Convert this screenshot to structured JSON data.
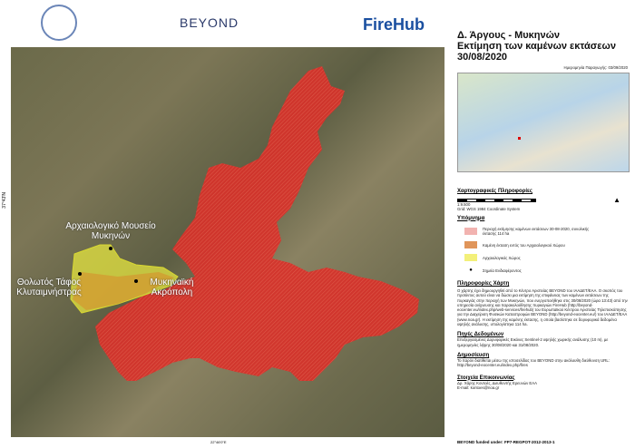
{
  "header": {
    "logo_university": "seal",
    "logo_beyond": "BEYOND",
    "logo_firehub": "FireHub"
  },
  "colors": {
    "burned": "#d8312a",
    "archaeological": "#e6e640",
    "burned_in_site": "#d88a2a",
    "firehub": "#1a4fa0"
  },
  "map": {
    "labels": {
      "museum": "Αρχαιολογικό Μουσείο Μυκηνών",
      "tomb": "Θολωτός Τάφος Κλυταιμνήστρας",
      "acropolis": "Μυκηναϊκή Ακρόπολη"
    },
    "lat_label": "37°43'N",
    "lon_label": "22°46'0\"E"
  },
  "panel": {
    "title": [
      "Δ. Άργους - Μυκηνών",
      "Εκτίμηση των καμένων εκτάσεων",
      "30/08/2020"
    ],
    "production_date": "Ημερομηνία Παραγωγής: 03/09/2020",
    "cartographic": {
      "heading": "Χαρτογραφικές Πληροφορίες",
      "scale": "1:9.500",
      "grid": "Grid:  WGS 1984 Coordinate System"
    },
    "legend": {
      "heading": "Υπόμνημα",
      "items": [
        "Περιοχή εκτίμησης καμένων εκτάσεων 30-08-2020, συνολικής έκτασης 114 ha",
        "Καμένη έκταση εντός του Αρχαιολογικού Χώρου",
        "Αρχαιολογικός Χώρος",
        "Σημεία Ενδιαφέροντος"
      ]
    },
    "map_info": {
      "heading": "Πληροφορίες Χάρτη",
      "text": "Ο χάρτης έχει δημιουργηθεί από το Κέντρο Αριστείας BEYOND του ΙΑΑΔΕΤ/ΕΑΑ. Ο σκοπός του προϊόντος αυτού είναι να δώσει μια εκτίμηση της επιφάνειας των καμένων εκτάσεων της πυρκαγιάς στην περιοχή των Μυκηνών, που ενεργοποιήθηκε στις 30/08/2020 (ώρα 13:43) από την υπηρεσία ανίχνευσης και παρακολούθησης πυρκαγιών FireHub (http://beyond-eocenter.eu/index.php/web-services/firehub) του Ευρωπαϊκού Κέντρου Αριστείας Τηλεπισκόπησης για την Διαχείριση Φυσικών Καταστροφών BEYOND (http://beyond-eocenter.eu/) του ΙΑΑΔΕΤ/ΕΑΑ (www.noa.gr). Η εκτίμηση της καμένης έκτασης, η οποία βασίστηκε σε δορυφορικά δεδομένα υψηλής ανάλυσης, υπολογίστηκε 114  ha."
    },
    "data_sources": {
      "heading": "Πηγές Δεδομένων",
      "text": "Επεξεργασμένες Δορυφορικές Εικόνες Sentinel-2 υψηλής χωρικής ανάλυσης (10 m), με ημερομηνίες λήψης 30/08/2020 και 31/08/2020."
    },
    "publication": {
      "heading": "Δημοσίευση",
      "text": "Το παρόν διατίθεται μέσω της ιστοσελίδας του BEYOND στην ακόλουθη διεύθυνση URL: http://beyond-eocenter.eu/index.php/fires"
    },
    "contact": {
      "heading": "Στοιχεία Επικοινωνίας",
      "name": "Δρ. Χάρης Κοντοές, Διευθυντής Ερευνών ΕΑΑ",
      "email": "E-mail: kontoes@noa.gr"
    },
    "funding": "BEYOND funded under: FP7-REGPOT-2012-2013-1"
  }
}
